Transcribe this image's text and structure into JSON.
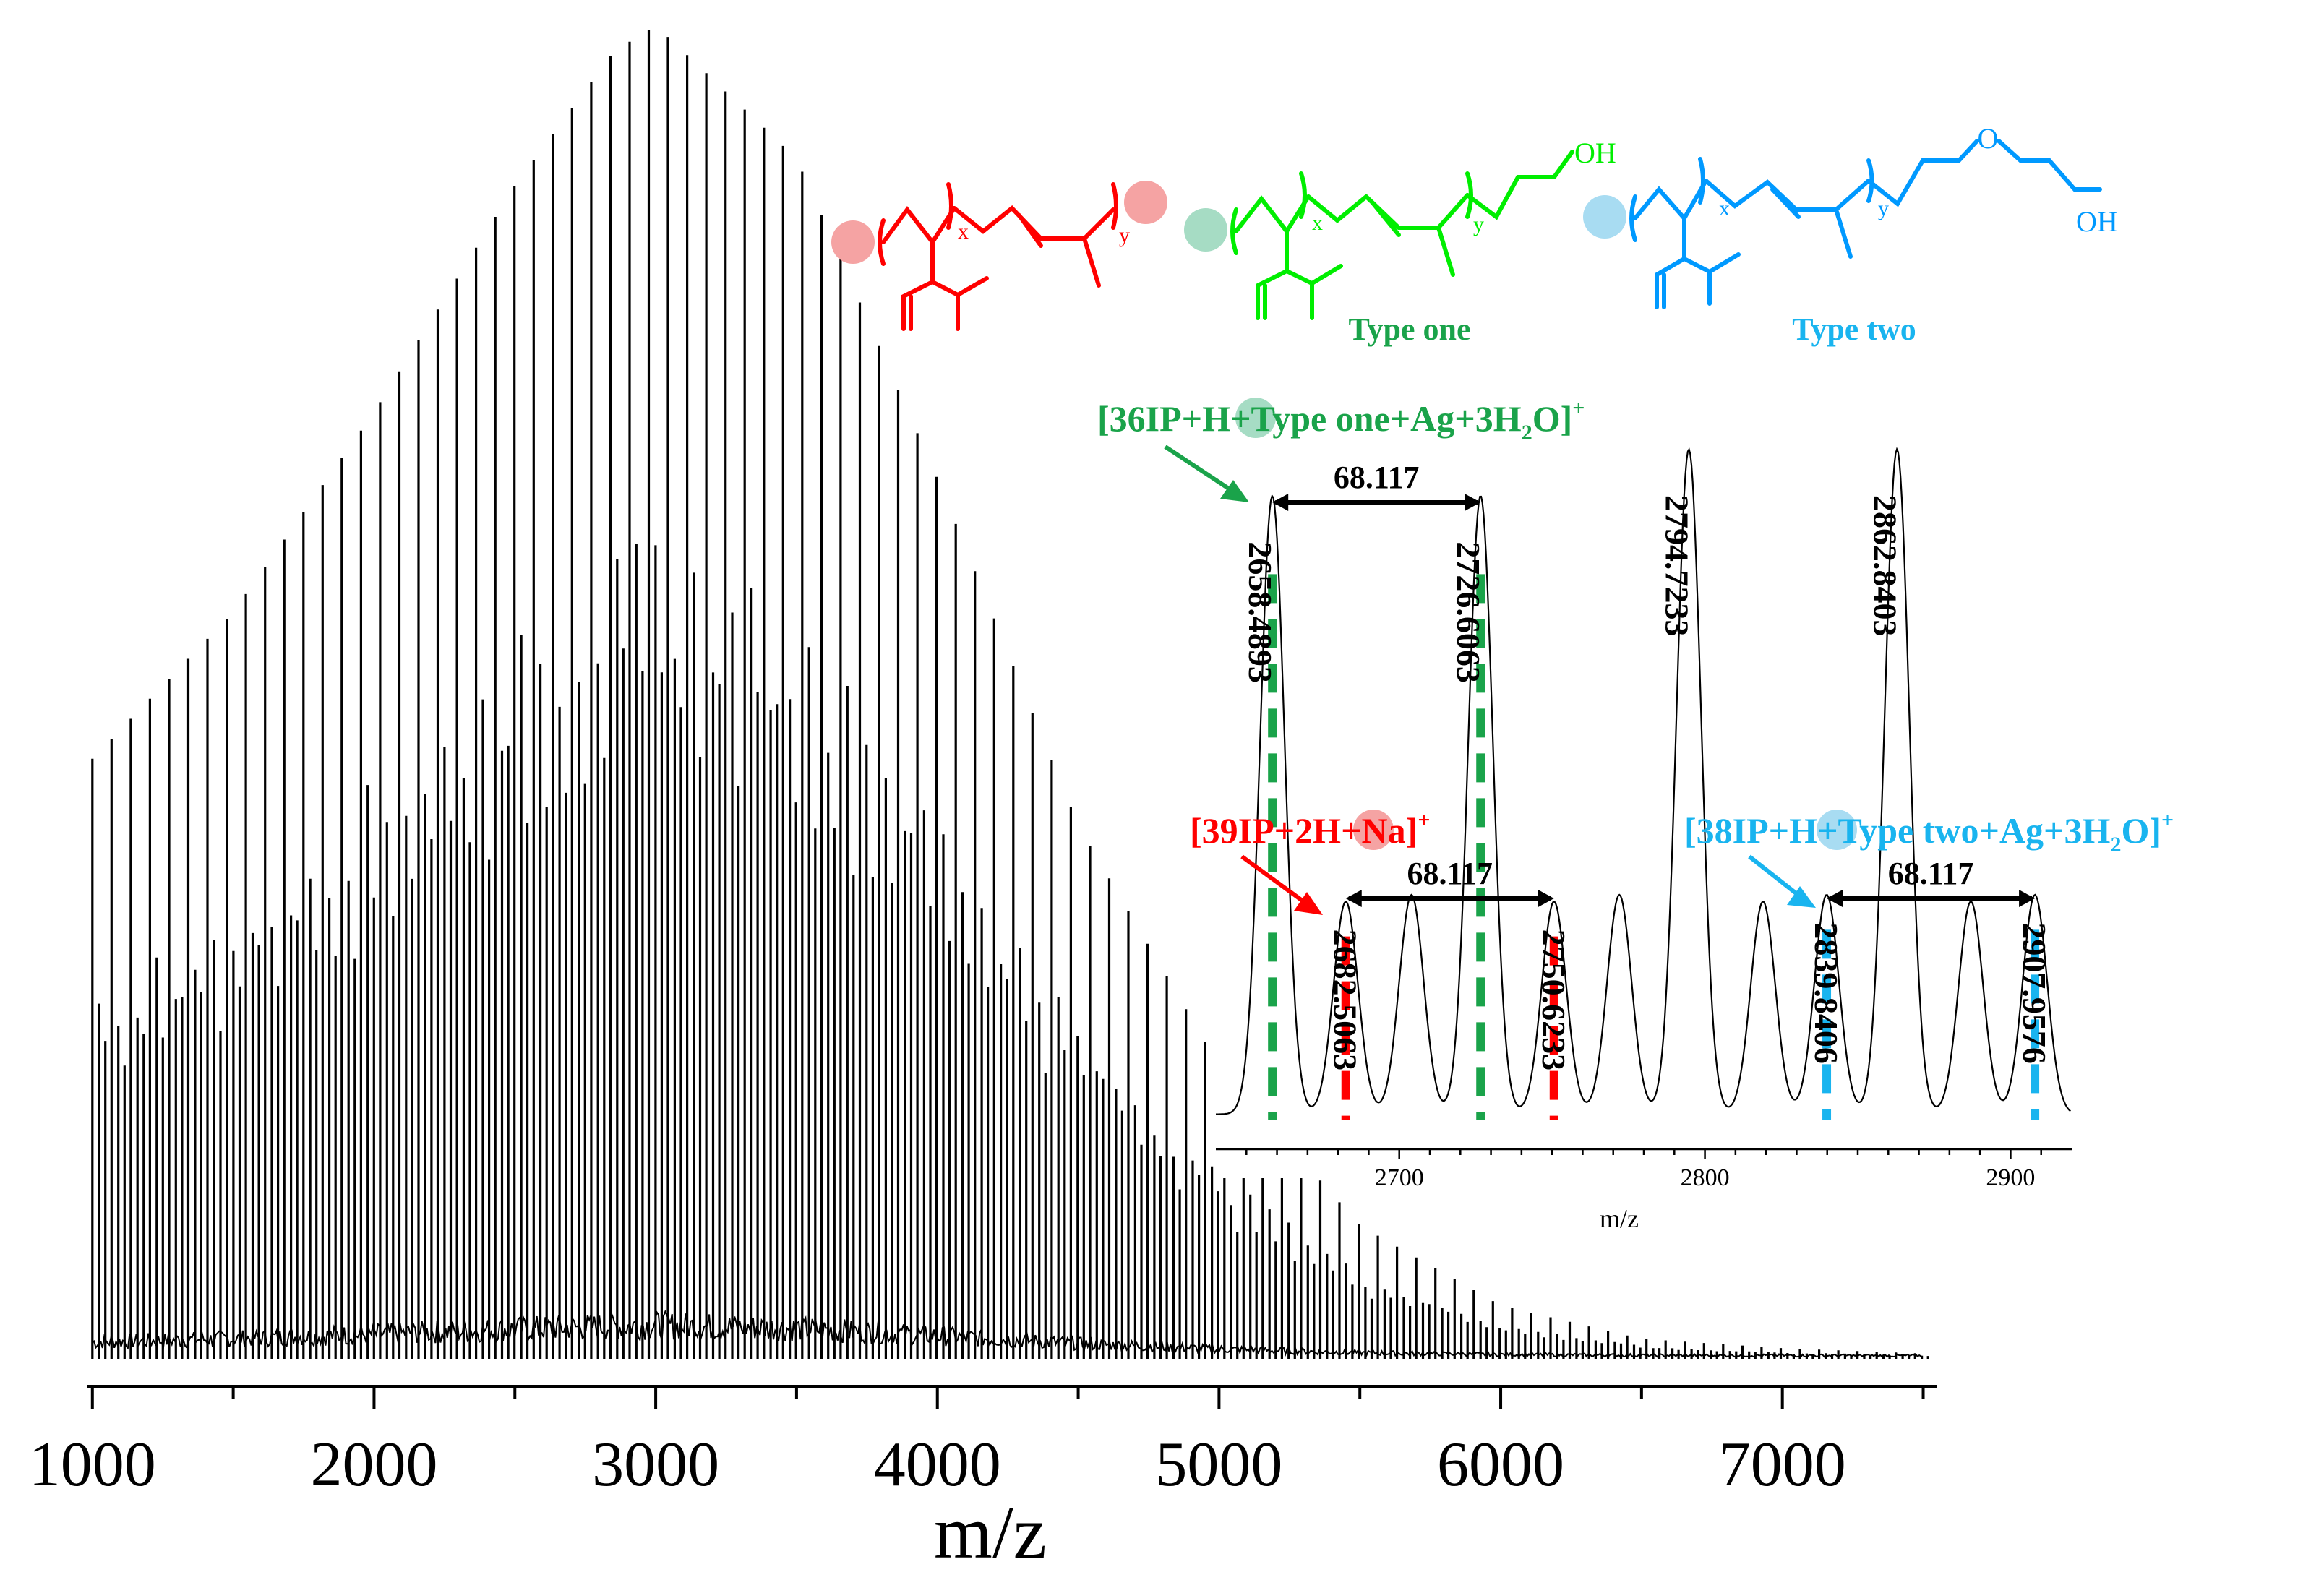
{
  "chart_data": [
    {
      "type": "line",
      "name": "main-spectrum",
      "xlabel": "m/z",
      "xlim": [
        980,
        7550
      ],
      "x_ticks": [
        "1000",
        "2000",
        "3000",
        "4000",
        "5000",
        "6000",
        "7000"
      ],
      "series": [
        {
          "name": "envelope-maxima",
          "x": [
            1000,
            1500,
            2000,
            2500,
            2850,
            3000,
            3500,
            4000,
            4500,
            5000,
            5500,
            6000,
            6500,
            7000,
            7500
          ],
          "values": [
            0.45,
            0.56,
            0.71,
            0.88,
            0.98,
            1.0,
            0.9,
            0.66,
            0.4,
            0.22,
            0.1,
            0.04,
            0.015,
            0.008,
            0.004
          ]
        }
      ]
    },
    {
      "type": "line",
      "name": "inset-spectrum",
      "xlabel": "m/z",
      "xlim": [
        2640,
        2920
      ],
      "x_ticks": [
        "2700",
        "2800",
        "2900"
      ],
      "peaks": [
        {
          "mz": 2658.4893,
          "rel": 0.93,
          "label": "2658.4893",
          "family": "type-one"
        },
        {
          "mz": 2682.5063,
          "rel": 0.32,
          "label": "2682.5063",
          "family": "ip"
        },
        {
          "mz": 2704,
          "rel": 0.33
        },
        {
          "mz": 2726.6063,
          "rel": 0.93,
          "label": "2726.6063",
          "family": "type-one"
        },
        {
          "mz": 2750.6233,
          "rel": 0.32,
          "label": "2750.6233",
          "family": "ip"
        },
        {
          "mz": 2772,
          "rel": 0.33
        },
        {
          "mz": 2794.7233,
          "rel": 1.0,
          "label": "2794.7233"
        },
        {
          "mz": 2819,
          "rel": 0.32
        },
        {
          "mz": 2839.8406,
          "rel": 0.33,
          "label": "2839.8406",
          "family": "type-two"
        },
        {
          "mz": 2862.8403,
          "rel": 1.0,
          "label": "2862.8403"
        },
        {
          "mz": 2887,
          "rel": 0.32
        },
        {
          "mz": 2907.9576,
          "rel": 0.33,
          "label": "2907.9576",
          "family": "type-two"
        }
      ],
      "spacings": [
        {
          "from": 2658.4893,
          "to": 2726.6063,
          "value": "68.117"
        },
        {
          "from": 2682.5063,
          "to": 2750.6233,
          "value": "68.117"
        },
        {
          "from": 2839.8406,
          "to": 2907.9576,
          "value": "68.117"
        }
      ],
      "assignments": [
        {
          "family": "type-one",
          "pre": "[36IP+",
          "mid": "H",
          "post": "+Type one+Ag+3H",
          "sub": "2",
          "tail": "O]",
          "sup": "+"
        },
        {
          "family": "ip",
          "pre": "[39IP+2",
          "mid": "H",
          "post": "+Na]",
          "sup": "+"
        },
        {
          "family": "type-two",
          "pre": "[38IP+",
          "mid": "H",
          "post": "+Type two+Ag+3H",
          "sub": "2",
          "tail": "O]",
          "sup": "+"
        }
      ]
    }
  ],
  "structures": {
    "ip": {
      "x": "x",
      "y": "y"
    },
    "type_one": {
      "x": "x",
      "y": "y",
      "end_group": "OH",
      "name": "Type one"
    },
    "type_two": {
      "x": "x",
      "y": "y",
      "ether": "O",
      "end_group": "OH",
      "name": "Type two"
    }
  },
  "colors": {
    "ip": "#ff0000",
    "ip_dot": "#f5a3a3",
    "type_one": "#00ee00",
    "type_one_dark": "#1aa34a",
    "type_one_dot": "#a6dcc4",
    "type_two": "#0099ff",
    "type_two_dot": "#a8dcf2",
    "type_one_text": "#1aa34a",
    "type_two_text": "#19b4ef"
  }
}
